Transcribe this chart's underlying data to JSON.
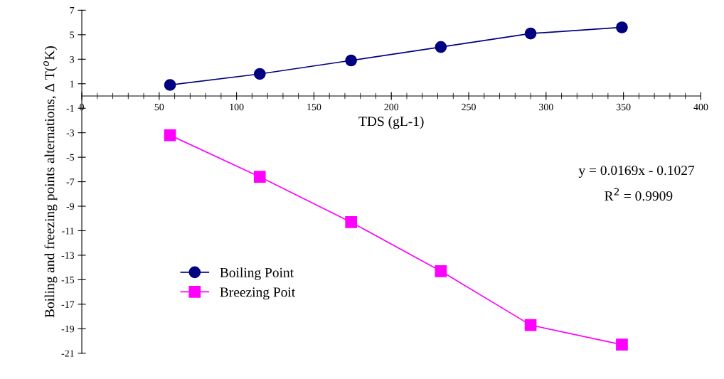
{
  "chart_data": {
    "type": "line",
    "xlabel": "TDS (gL-1)",
    "ylabel": "Boiling and freezing points alternations, Δ T($^{o}$K)",
    "xlim": [
      0,
      400
    ],
    "xticks": [
      0,
      50,
      100,
      150,
      200,
      250,
      300,
      350,
      400
    ],
    "ylim": [
      -21,
      7
    ],
    "yticks": [
      -21,
      -19,
      -17,
      -15,
      -13,
      -11,
      -9,
      -7,
      -5,
      -3,
      -1,
      1,
      3,
      5,
      7
    ],
    "x": [
      57,
      115,
      174,
      232,
      290,
      349
    ],
    "series": [
      {
        "name": "Boiling Point",
        "color": "#000080",
        "marker": "circle",
        "values": [
          0.9,
          1.8,
          2.9,
          4.0,
          5.1,
          5.6
        ]
      },
      {
        "name": "Breezing Poit",
        "color": "#ff00ff",
        "marker": "square",
        "values": [
          -3.2,
          -6.6,
          -10.3,
          -14.3,
          -18.7,
          -20.3
        ]
      }
    ],
    "annotations": [
      "y = 0.0169x - 0.1027",
      "R$^{2}$ = 0.9909"
    ],
    "legend": "bottom left",
    "grid": false,
    "line_style": "solid"
  }
}
